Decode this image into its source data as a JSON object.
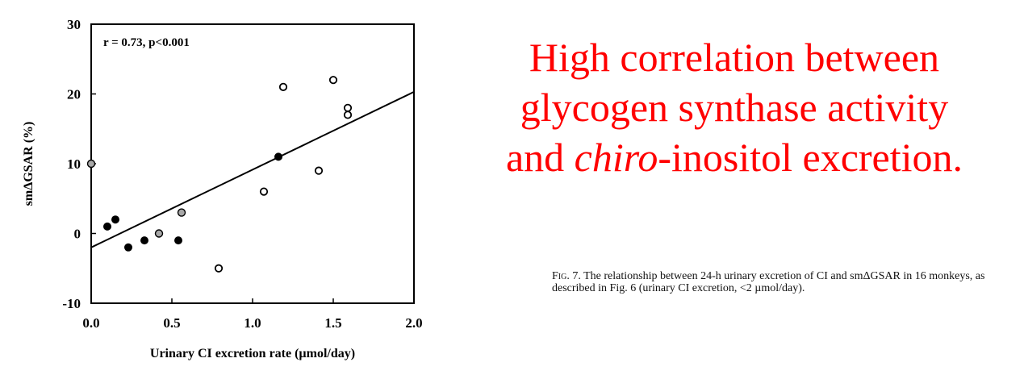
{
  "chart_data": {
    "type": "scatter",
    "xlabel": "Urinary CI excretion rate (µmol/day)",
    "ylabel": "smΔGSAR (%)",
    "xlim": [
      0.0,
      2.0
    ],
    "ylim": [
      -10,
      30
    ],
    "xticks": [
      "0.0",
      "0.5",
      "1.0",
      "1.5",
      "2.0"
    ],
    "yticks": [
      "-10",
      "0",
      "10",
      "20",
      "30"
    ],
    "annotation": "r = 0.73, p<0.001",
    "grid": false,
    "series": [
      {
        "marker": "filled",
        "color": "#000000",
        "points": [
          [
            0.1,
            1
          ],
          [
            0.15,
            2
          ],
          [
            0.23,
            -2
          ],
          [
            0.33,
            -1
          ],
          [
            0.54,
            -1
          ],
          [
            1.16,
            11
          ]
        ]
      },
      {
        "marker": "open",
        "color": "#000000",
        "points": [
          [
            0.79,
            -5
          ],
          [
            1.07,
            6
          ],
          [
            1.19,
            21
          ],
          [
            1.41,
            9
          ],
          [
            1.5,
            22
          ],
          [
            1.59,
            18
          ],
          [
            1.59,
            17
          ]
        ]
      },
      {
        "marker": "hatched",
        "color": "#555555",
        "points": [
          [
            0.0,
            10
          ],
          [
            0.42,
            0
          ],
          [
            0.56,
            3
          ]
        ]
      }
    ],
    "regression": {
      "x": [
        0.0,
        2.0
      ],
      "y": [
        -2,
        20.3
      ]
    }
  },
  "headline": {
    "line1": "High correlation between",
    "line2": "glycogen synthase activity",
    "line3_prefix": "and ",
    "line3_italic": "chiro",
    "line3_suffix": "-inositol excretion."
  },
  "caption": {
    "lead": "Fig. 7.",
    "text": " The relationship between 24-h urinary excretion of CI and smΔGSAR in 16 monkeys, as described in Fig. 6 (urinary CI excretion, <2 µmol/day)."
  }
}
